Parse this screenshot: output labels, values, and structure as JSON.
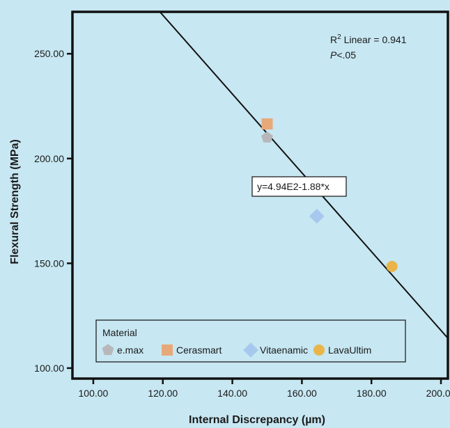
{
  "chart_data": {
    "type": "scatter",
    "xlabel": "Internal Discrepancy (µm)",
    "ylabel": "Flexural Strength (MPa)",
    "xlim": [
      94,
      202
    ],
    "ylim": [
      95,
      270
    ],
    "x_ticks": [
      100,
      120,
      140,
      160,
      180,
      200
    ],
    "x_tick_labels": [
      "100.00",
      "120.00",
      "140.00",
      "160.00",
      "180.00",
      "200.00"
    ],
    "y_ticks": [
      100,
      150,
      200,
      250
    ],
    "y_tick_labels": [
      "100.00",
      "150.00",
      "200.00",
      "250.00"
    ],
    "grid": false,
    "legend_title": "Material",
    "legend_placement": "bottom-left",
    "series": [
      {
        "name": "e.max",
        "marker": "pentagon",
        "color": "#b7b7bb",
        "x": [
          150.0
        ],
        "y": [
          210.0
        ]
      },
      {
        "name": "Cerasmart",
        "marker": "square",
        "color": "#e8a978",
        "x": [
          150.0
        ],
        "y": [
          216.5
        ]
      },
      {
        "name": "Vitaenamic",
        "marker": "diamond",
        "color": "#a7c8ee",
        "x": [
          164.3
        ],
        "y": [
          172.5
        ]
      },
      {
        "name": "LavaUltim",
        "marker": "circle",
        "color": "#e9b54a",
        "x": [
          185.9
        ],
        "y": [
          148.5
        ]
      }
    ],
    "fit_line": {
      "label": "y=4.94E2-1.88*x",
      "intercept": 494,
      "slope": -1.88,
      "color": "#111111"
    },
    "annotations": {
      "r2_prefix": "R",
      "r2_sup": "2",
      "r2_text": " Linear = 0.941",
      "p_italic": "P",
      "p_text": "<.05"
    }
  }
}
